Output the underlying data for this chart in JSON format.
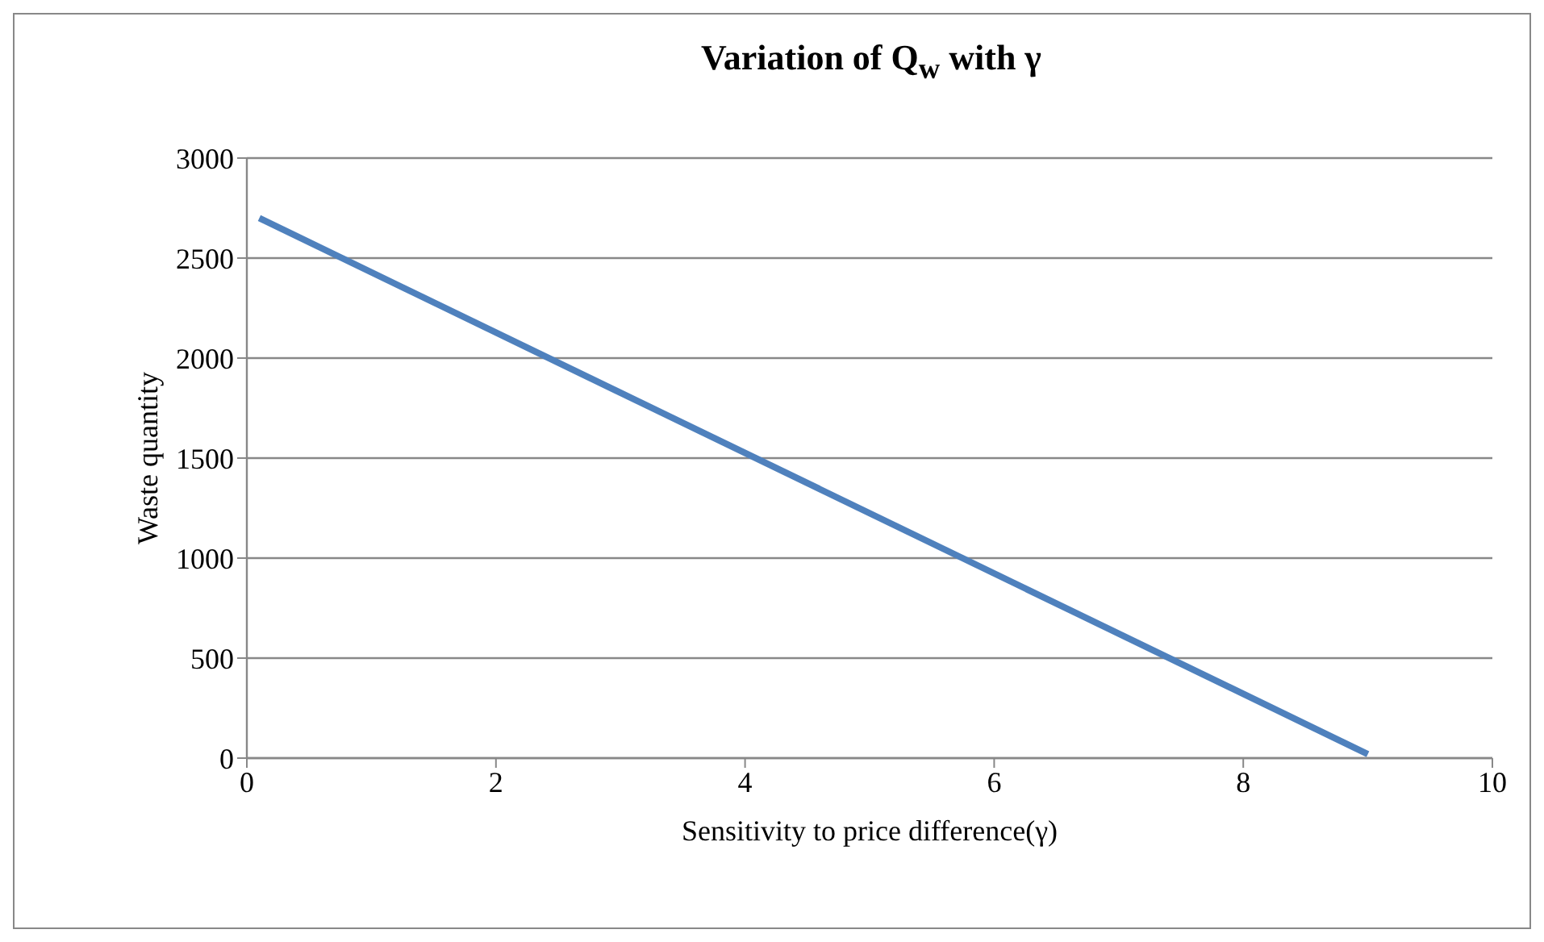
{
  "chart_data": {
    "type": "line",
    "title": "Variation of Q$_{w}$ with γ",
    "xlabel": "Sensitivity to price difference(γ)",
    "ylabel": "Waste quantity",
    "x": [
      0.1,
      9
    ],
    "series": [
      {
        "color": "#4f81bd",
        "values": [
          2700,
          20
        ]
      }
    ],
    "xlim": [
      0,
      10
    ],
    "xticks": [
      0,
      2,
      4,
      6,
      8,
      10
    ],
    "ylim": [
      0,
      3000
    ],
    "yticks": [
      0,
      500,
      1000,
      1500,
      2000,
      2500,
      3000
    ],
    "grid": "y",
    "legend": false,
    "marker": "none",
    "line_style": "solid"
  }
}
